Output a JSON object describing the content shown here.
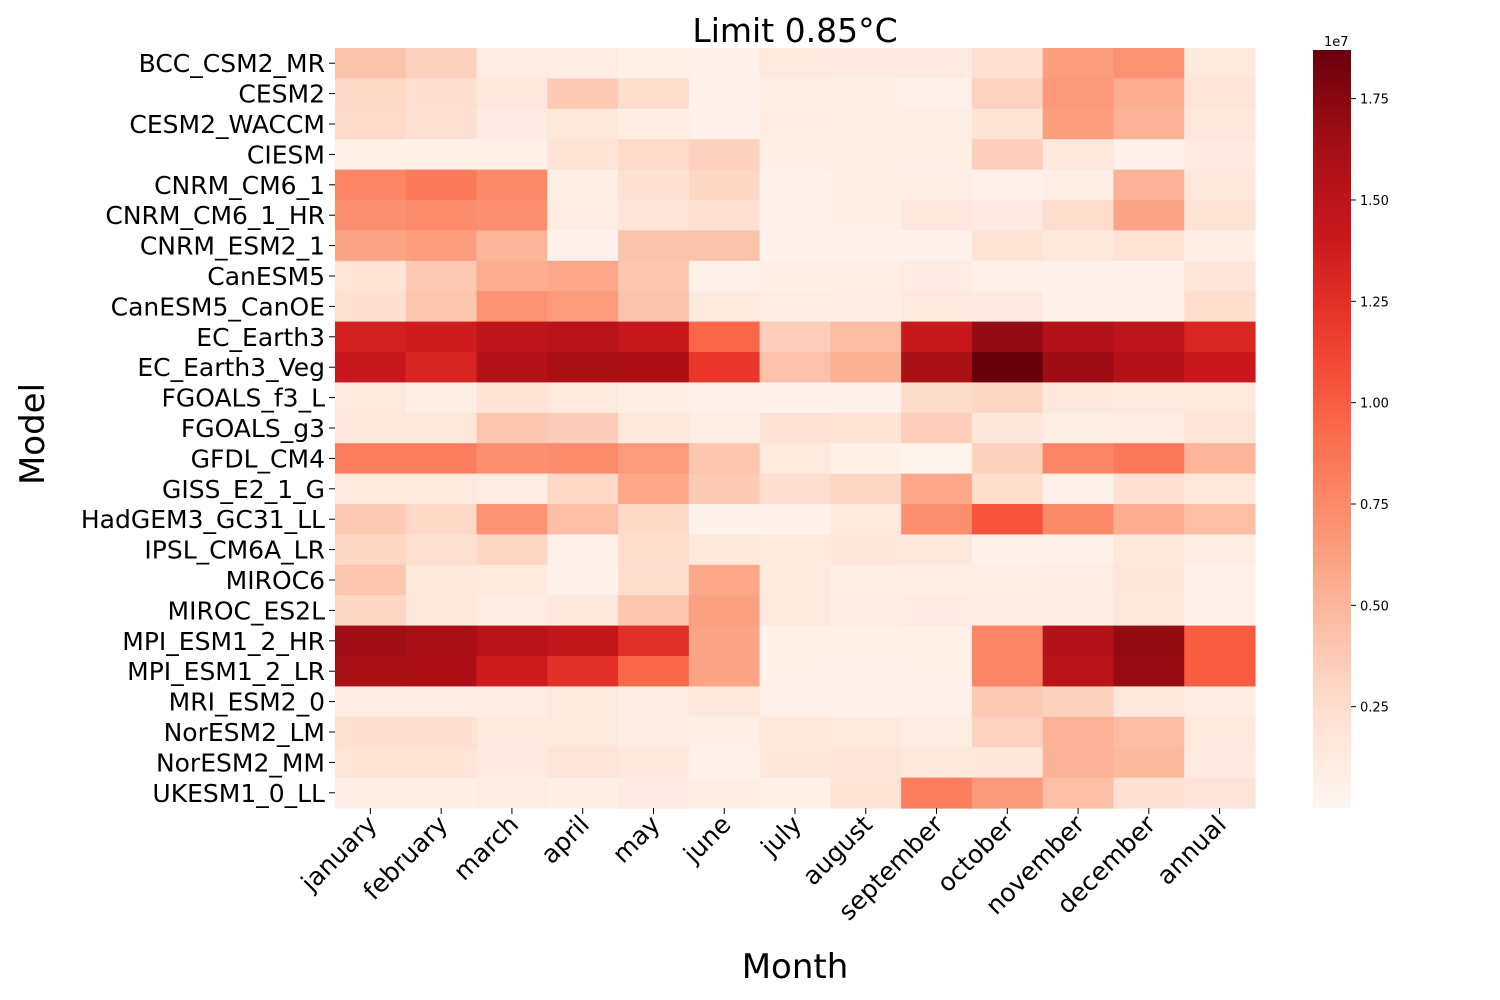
{
  "chart_data": {
    "type": "heatmap",
    "title": "Limit 0.85°C",
    "xlabel": "Month",
    "ylabel": "Model",
    "colormap": "Reds",
    "colorbar": {
      "min": 0,
      "max": 1.87,
      "scale_label": "1e7",
      "ticks": [
        0.25,
        0.5,
        0.75,
        1.0,
        1.25,
        1.5,
        1.75
      ],
      "tick_labels": [
        "0.25",
        "0.50",
        "0.75",
        "1.00",
        "1.25",
        "1.50",
        "1.75"
      ]
    },
    "x": [
      "january",
      "february",
      "march",
      "april",
      "may",
      "june",
      "july",
      "august",
      "september",
      "october",
      "november",
      "december",
      "annual"
    ],
    "y": [
      "BCC_CSM2_MR",
      "CESM2",
      "CESM2_WACCM",
      "CIESM",
      "CNRM_CM6_1",
      "CNRM_CM6_1_HR",
      "CNRM_ESM2_1",
      "CanESM5",
      "CanESM5_CanOE",
      "EC_Earth3",
      "EC_Earth3_Veg",
      "FGOALS_f3_L",
      "FGOALS_g3",
      "GFDL_CM4",
      "GISS_E2_1_G",
      "HadGEM3_GC31_LL",
      "IPSL_CM6A_LR",
      "MIROC6",
      "MIROC_ES2L",
      "MPI_ESM1_2_HR",
      "MPI_ESM1_2_LR",
      "MRI_ESM2_0",
      "NorESM2_LM",
      "NorESM2_MM",
      "UKESM1_0_LL"
    ],
    "values": [
      [
        0.42,
        0.33,
        0.1,
        0.09,
        0.06,
        0.04,
        0.13,
        0.12,
        0.12,
        0.22,
        0.64,
        0.7,
        0.13
      ],
      [
        0.28,
        0.24,
        0.15,
        0.37,
        0.25,
        0.04,
        0.08,
        0.07,
        0.05,
        0.32,
        0.66,
        0.55,
        0.18
      ],
      [
        0.27,
        0.22,
        0.11,
        0.16,
        0.1,
        0.04,
        0.1,
        0.08,
        0.08,
        0.2,
        0.64,
        0.52,
        0.14
      ],
      [
        0.06,
        0.06,
        0.06,
        0.2,
        0.27,
        0.33,
        0.08,
        0.08,
        0.07,
        0.35,
        0.15,
        0.04,
        0.12
      ],
      [
        0.78,
        0.84,
        0.75,
        0.07,
        0.22,
        0.3,
        0.03,
        0.07,
        0.08,
        0.05,
        0.08,
        0.52,
        0.15
      ],
      [
        0.72,
        0.74,
        0.72,
        0.09,
        0.18,
        0.23,
        0.04,
        0.07,
        0.15,
        0.12,
        0.25,
        0.6,
        0.2
      ],
      [
        0.6,
        0.64,
        0.5,
        0.03,
        0.42,
        0.42,
        0.04,
        0.04,
        0.03,
        0.2,
        0.15,
        0.2,
        0.07
      ],
      [
        0.2,
        0.38,
        0.54,
        0.58,
        0.4,
        0.05,
        0.07,
        0.08,
        0.11,
        0.05,
        0.04,
        0.04,
        0.18
      ],
      [
        0.24,
        0.4,
        0.7,
        0.65,
        0.42,
        0.13,
        0.09,
        0.09,
        0.13,
        0.12,
        0.04,
        0.05,
        0.25
      ],
      [
        1.35,
        1.38,
        1.48,
        1.52,
        1.42,
        0.95,
        0.35,
        0.46,
        1.42,
        1.7,
        1.55,
        1.5,
        1.3
      ],
      [
        1.42,
        1.32,
        1.55,
        1.62,
        1.6,
        1.2,
        0.43,
        0.53,
        1.62,
        1.87,
        1.66,
        1.55,
        1.4
      ],
      [
        0.13,
        0.07,
        0.2,
        0.13,
        0.08,
        0.05,
        0.04,
        0.04,
        0.26,
        0.3,
        0.15,
        0.13,
        0.13
      ],
      [
        0.14,
        0.16,
        0.4,
        0.36,
        0.16,
        0.08,
        0.21,
        0.2,
        0.35,
        0.17,
        0.08,
        0.09,
        0.19
      ],
      [
        0.82,
        0.82,
        0.72,
        0.74,
        0.65,
        0.4,
        0.13,
        0.06,
        0.02,
        0.33,
        0.78,
        0.84,
        0.5
      ],
      [
        0.13,
        0.13,
        0.09,
        0.29,
        0.58,
        0.37,
        0.24,
        0.3,
        0.58,
        0.25,
        0.04,
        0.22,
        0.16
      ],
      [
        0.38,
        0.28,
        0.7,
        0.45,
        0.28,
        0.03,
        0.03,
        0.13,
        0.72,
        1.05,
        0.75,
        0.55,
        0.45
      ],
      [
        0.3,
        0.23,
        0.3,
        0.05,
        0.25,
        0.16,
        0.13,
        0.17,
        0.14,
        0.04,
        0.05,
        0.15,
        0.09
      ],
      [
        0.4,
        0.16,
        0.13,
        0.03,
        0.25,
        0.58,
        0.13,
        0.08,
        0.08,
        0.08,
        0.1,
        0.17,
        0.05
      ],
      [
        0.3,
        0.16,
        0.1,
        0.14,
        0.4,
        0.62,
        0.13,
        0.09,
        0.11,
        0.09,
        0.1,
        0.16,
        0.05
      ],
      [
        1.65,
        1.62,
        1.52,
        1.45,
        1.25,
        0.6,
        0.06,
        0.06,
        0.06,
        0.78,
        1.55,
        1.7,
        1.0
      ],
      [
        1.62,
        1.6,
        1.38,
        1.25,
        0.95,
        0.6,
        0.06,
        0.05,
        0.06,
        0.78,
        1.52,
        1.68,
        1.0
      ],
      [
        0.1,
        0.1,
        0.09,
        0.13,
        0.09,
        0.15,
        0.05,
        0.05,
        0.05,
        0.38,
        0.33,
        0.15,
        0.1
      ],
      [
        0.24,
        0.24,
        0.13,
        0.13,
        0.09,
        0.07,
        0.16,
        0.13,
        0.1,
        0.32,
        0.52,
        0.46,
        0.13
      ],
      [
        0.2,
        0.2,
        0.12,
        0.19,
        0.15,
        0.05,
        0.17,
        0.18,
        0.16,
        0.17,
        0.52,
        0.48,
        0.12
      ],
      [
        0.08,
        0.07,
        0.09,
        0.07,
        0.11,
        0.09,
        0.06,
        0.2,
        0.82,
        0.66,
        0.45,
        0.22,
        0.19
      ]
    ]
  }
}
